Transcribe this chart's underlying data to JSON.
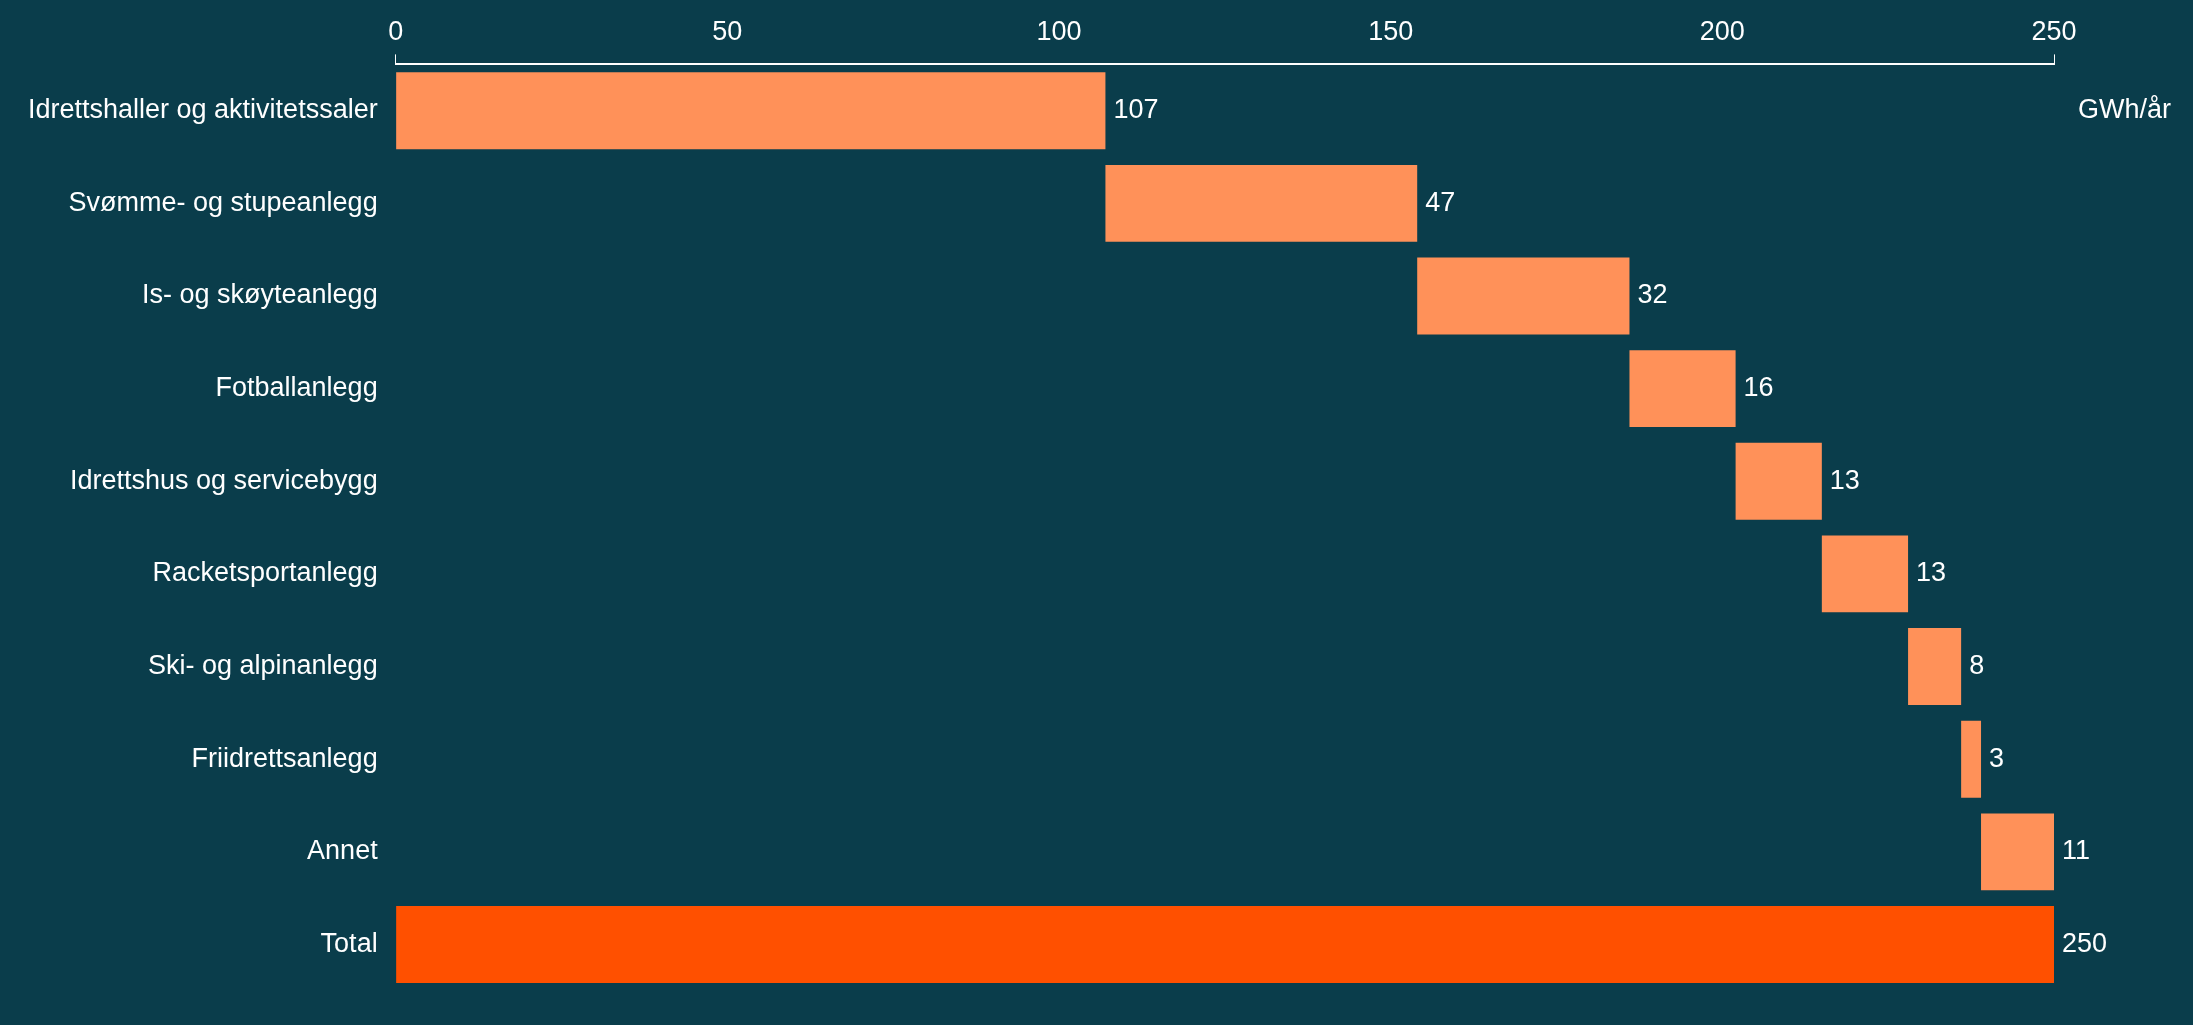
{
  "chart_data": {
    "type": "bar",
    "orientation": "horizontal",
    "xlabel": "GWh/år",
    "categories": [
      "Idrettshaller og aktivitetssaler",
      "Svømme- og stupeanlegg",
      "Is- og skøyteanlegg",
      "Fotballanlegg",
      "Idrettshus og servicebygg",
      "Racketsportanlegg",
      "Ski- og alpinanlegg",
      "Friidrettsanlegg",
      "Annet",
      "Total"
    ],
    "values": [
      107,
      47,
      32,
      16,
      13,
      13,
      8,
      3,
      11,
      250
    ],
    "base": [
      0,
      107,
      154,
      186,
      202,
      215,
      228,
      236,
      239,
      0
    ],
    "colors": [
      "#ff9159",
      "#ff9159",
      "#ff9159",
      "#ff9159",
      "#ff9159",
      "#ff9159",
      "#ff9159",
      "#ff9159",
      "#ff9159",
      "#ff5000"
    ],
    "xlim": [
      0,
      250
    ],
    "xticks": [
      0,
      50,
      100,
      150,
      200,
      250
    ],
    "grid": false,
    "legend": false,
    "data_labels": true
  }
}
